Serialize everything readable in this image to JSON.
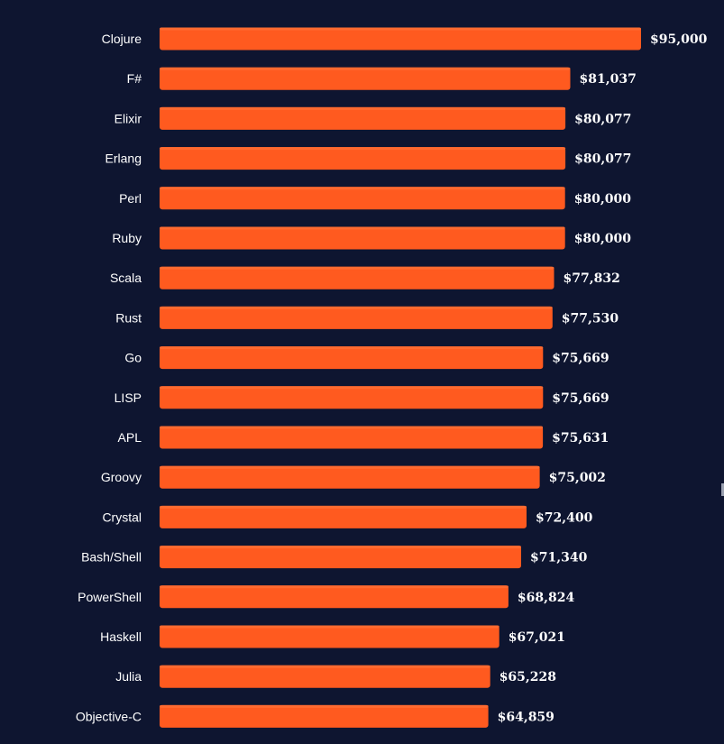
{
  "colors": {
    "background": "#0e1530",
    "bar": "#ff5a1f",
    "bar_highlight": "#ff6a30",
    "text": "#ffffff"
  },
  "chart_data": {
    "type": "bar",
    "orientation": "horizontal",
    "title": "",
    "xlabel": "",
    "ylabel": "",
    "grid": false,
    "legend": "none",
    "categories": [
      "Clojure",
      "F#",
      "Elixir",
      "Erlang",
      "Perl",
      "Ruby",
      "Scala",
      "Rust",
      "Go",
      "LISP",
      "APL",
      "Groovy",
      "Crystal",
      "Bash/Shell",
      "PowerShell",
      "Haskell",
      "Julia",
      "Objective-C"
    ],
    "values": [
      95000,
      81037,
      80077,
      80077,
      80000,
      80000,
      77832,
      77530,
      75669,
      75669,
      75631,
      75002,
      72400,
      71340,
      68824,
      67021,
      65228,
      64859
    ],
    "value_labels": [
      "$95,000",
      "$81,037",
      "$80,077",
      "$80,077",
      "$80,000",
      "$80,000",
      "$77,832",
      "$77,530",
      "$75,669",
      "$75,669",
      "$75,631",
      "$75,002",
      "$72,400",
      "$71,340",
      "$68,824",
      "$67,021",
      "$65,228",
      "$64,859"
    ],
    "xlim": [
      0,
      95000
    ]
  }
}
